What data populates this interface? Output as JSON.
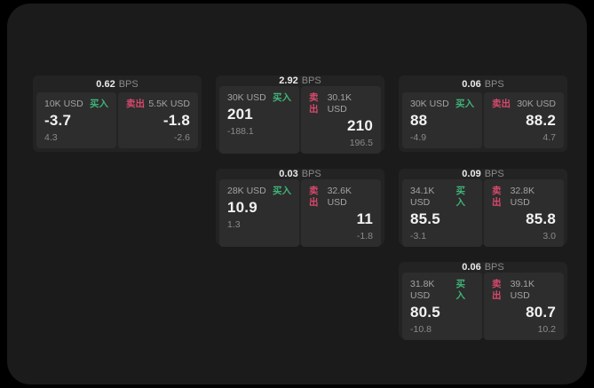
{
  "labels": {
    "bps": "BPS",
    "buy": "买入",
    "sell": "卖出"
  },
  "colors": {
    "background": "#000000",
    "panel": "#1b1b1b",
    "card": "#232323",
    "subpanel": "#2d2d2d",
    "buy_green": "#3fb377",
    "sell_red": "#d8486c"
  },
  "cards": [
    {
      "bps": "0.62",
      "buy": {
        "amount": "10K USD",
        "value": "-3.7",
        "delta": "4.3"
      },
      "sell": {
        "amount": "5.5K USD",
        "value": "-1.8",
        "delta": "-2.6"
      }
    },
    {
      "bps": "2.92",
      "buy": {
        "amount": "30K USD",
        "value": "201",
        "delta": "-188.1"
      },
      "sell": {
        "amount": "30.1K USD",
        "value": "210",
        "delta": "196.5"
      }
    },
    {
      "bps": "0.06",
      "buy": {
        "amount": "30K USD",
        "value": "88",
        "delta": "-4.9"
      },
      "sell": {
        "amount": "30K USD",
        "value": "88.2",
        "delta": "4.7"
      }
    },
    {
      "bps": "0.03",
      "buy": {
        "amount": "28K USD",
        "value": "10.9",
        "delta": "1.3"
      },
      "sell": {
        "amount": "32.6K USD",
        "value": "11",
        "delta": "-1.8"
      }
    },
    {
      "bps": "0.09",
      "buy": {
        "amount": "34.1K USD",
        "value": "85.5",
        "delta": "-3.1"
      },
      "sell": {
        "amount": "32.8K USD",
        "value": "85.8",
        "delta": "3.0"
      }
    },
    {
      "bps": "0.06",
      "buy": {
        "amount": "31.8K USD",
        "value": "80.5",
        "delta": "-10.8"
      },
      "sell": {
        "amount": "39.1K USD",
        "value": "80.7",
        "delta": "10.2"
      }
    }
  ]
}
